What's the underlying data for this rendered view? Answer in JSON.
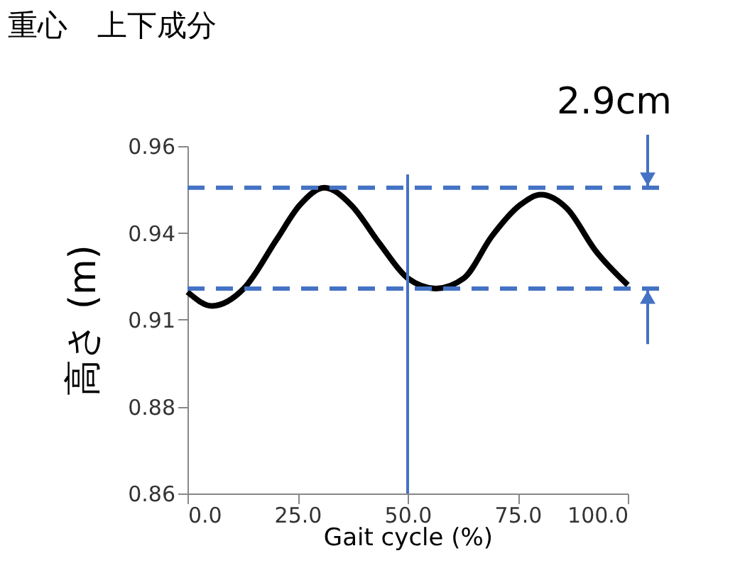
{
  "chart_data": {
    "type": "line",
    "title": "重心　上下成分",
    "xlabel": "Gait cycle (%)",
    "ylabel": "高さ (m)",
    "x": [
      0,
      5.6,
      12.8,
      20.2,
      25.5,
      31.1,
      37.2,
      43.6,
      50,
      56.4,
      62.8,
      69.1,
      75.5,
      80.3,
      86.2,
      92.6,
      100
    ],
    "series": [
      {
        "color": "#000000",
        "values": [
          0.918,
          0.914,
          0.919,
          0.933,
          0.943,
          0.948,
          0.943,
          0.932,
          0.922,
          0.919,
          0.922,
          0.934,
          0.943,
          0.946,
          0.942,
          0.93,
          0.92
        ]
      }
    ],
    "xlim": [
      0,
      100
    ],
    "xticks": [
      {
        "value": 0,
        "label": "0.0"
      },
      {
        "value": 25,
        "label": "25.0"
      },
      {
        "value": 50,
        "label": "50.0"
      },
      {
        "value": 75,
        "label": "75.0"
      },
      {
        "value": 100,
        "label": "100.0"
      }
    ],
    "ylim": [
      0.86,
      0.96
    ],
    "yticks": [
      0.86,
      {
        "value": 0.885,
        "label": "0.88"
      },
      {
        "value": 0.91,
        "label": "0.91"
      },
      {
        "value": 0.935,
        "label": "0.94"
      },
      0.96
    ],
    "ref_lines": [
      {
        "axis": "y",
        "value": 0.948,
        "color": "#4472c4",
        "line_style": "dashed"
      },
      {
        "axis": "y",
        "value": 0.919,
        "color": "#4472c4",
        "line_style": "dashed"
      },
      {
        "axis": "x",
        "value": 50,
        "color": "#4472c4",
        "line_style": "solid"
      }
    ],
    "annotations": [
      "2.9cm"
    ],
    "grid": false,
    "marker": "none",
    "line_style": "solid"
  }
}
